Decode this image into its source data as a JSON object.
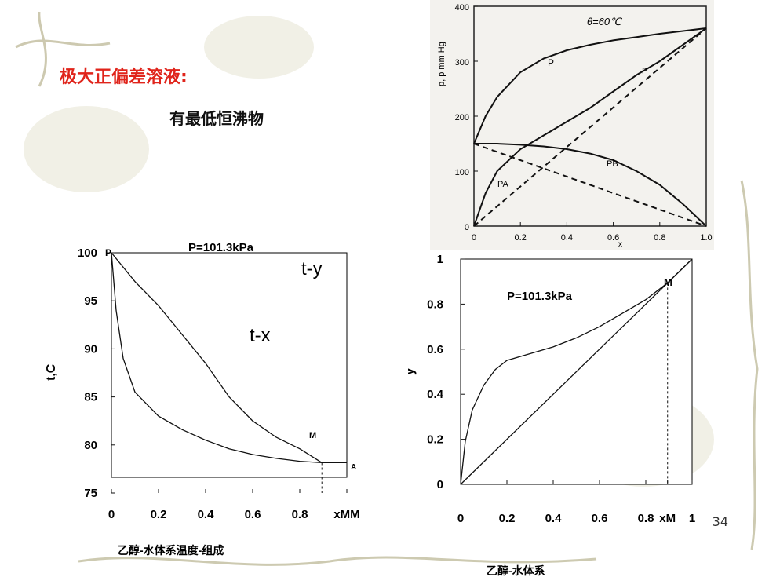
{
  "slide": {
    "heading": "极大正偏差溶液:",
    "subheading": "有最低恒沸物",
    "page_number": "34",
    "colors": {
      "heading": "#e0241b",
      "text": "#111111",
      "decor": "#c8c4a8"
    }
  },
  "chart_data": [
    {
      "id": "p-x-diagram",
      "type": "line",
      "title": "θ=60℃",
      "ylabel": "p, p mm Hg",
      "xlabel": "x",
      "xlim": [
        0,
        1.0
      ],
      "ylim": [
        0,
        400
      ],
      "x_ticks": [
        "0",
        "0.2",
        "0.4",
        "0.6",
        "0.8",
        "1.0"
      ],
      "y_ticks": [
        "0",
        "100",
        "200",
        "300",
        "400"
      ],
      "grid": false,
      "series": [
        {
          "name": "P",
          "style": "solid",
          "x": [
            0,
            0.05,
            0.1,
            0.2,
            0.3,
            0.4,
            0.5,
            0.6,
            0.7,
            0.8,
            0.9,
            1.0
          ],
          "y": [
            150,
            200,
            235,
            280,
            305,
            320,
            330,
            338,
            344,
            350,
            355,
            360
          ]
        },
        {
          "name": "PB",
          "style": "solid",
          "x": [
            0,
            0.1,
            0.2,
            0.3,
            0.4,
            0.5,
            0.6,
            0.7,
            0.8,
            0.9,
            1.0
          ],
          "y": [
            150,
            150,
            148,
            145,
            140,
            132,
            120,
            100,
            75,
            40,
            0
          ]
        },
        {
          "name": "PA",
          "style": "solid",
          "x": [
            0,
            0.05,
            0.1,
            0.2,
            0.3,
            0.4,
            0.5,
            0.6,
            0.7,
            0.8,
            0.9,
            1.0
          ],
          "y": [
            0,
            60,
            100,
            140,
            165,
            190,
            215,
            245,
            275,
            300,
            330,
            360
          ]
        },
        {
          "name": "",
          "style": "dashed",
          "x": [
            0,
            1.0
          ],
          "y": [
            0,
            360
          ]
        },
        {
          "name": "",
          "style": "dashed",
          "x": [
            0,
            1.0
          ],
          "y": [
            150,
            0
          ]
        }
      ],
      "annotations": [
        "P",
        "P",
        "PB",
        "PA"
      ]
    },
    {
      "id": "t-x-y-diagram",
      "type": "line",
      "title": "P=101.3kPa",
      "ylabel": "t,C",
      "xlabel": "乙醇-水体系温度-组成",
      "xlim": [
        0,
        1
      ],
      "ylim": [
        75,
        100
      ],
      "x_ticks": [
        "0",
        "0.2",
        "0.4",
        "0.6",
        "0.8",
        "xMM"
      ],
      "y_ticks": [
        "75",
        "80",
        "85",
        "90",
        "95",
        "100"
      ],
      "grid": false,
      "series": [
        {
          "name": "t-y",
          "x": [
            0,
            0.1,
            0.2,
            0.3,
            0.4,
            0.5,
            0.6,
            0.7,
            0.8,
            0.894
          ],
          "y": [
            100,
            97,
            94.5,
            91.5,
            88.5,
            85,
            82.5,
            80.8,
            79.6,
            78.15
          ]
        },
        {
          "name": "t-x",
          "x": [
            0,
            0.02,
            0.05,
            0.1,
            0.2,
            0.3,
            0.4,
            0.5,
            0.6,
            0.7,
            0.8,
            0.894,
            1.0
          ],
          "y": [
            100,
            94,
            89,
            85.5,
            83,
            81.6,
            80.5,
            79.6,
            79,
            78.6,
            78.3,
            78.15,
            78.15
          ]
        }
      ],
      "annotations": [
        "P",
        "M",
        "A",
        "t-y",
        "t-x"
      ]
    },
    {
      "id": "y-x-diagram",
      "type": "line",
      "title": "P=101.3kPa",
      "ylabel": "y",
      "xlabel": "乙醇-水体系",
      "xlim": [
        0,
        1
      ],
      "ylim": [
        0,
        1
      ],
      "x_ticks": [
        "0",
        "0.2",
        "0.4",
        "0.6",
        "0.8",
        "xM",
        "1"
      ],
      "y_ticks": [
        "0",
        "0.2",
        "0.4",
        "0.6",
        "0.8",
        "1"
      ],
      "grid": false,
      "series": [
        {
          "name": "",
          "x": [
            0,
            0.02,
            0.05,
            0.1,
            0.15,
            0.2,
            0.3,
            0.4,
            0.5,
            0.6,
            0.7,
            0.8,
            0.894,
            1.0
          ],
          "y": [
            0,
            0.19,
            0.33,
            0.44,
            0.51,
            0.55,
            0.58,
            0.61,
            0.65,
            0.7,
            0.76,
            0.82,
            0.894,
            1.0
          ]
        },
        {
          "name": "",
          "x": [
            0,
            1
          ],
          "y": [
            0,
            1
          ]
        }
      ],
      "annotations": [
        "M"
      ]
    }
  ]
}
